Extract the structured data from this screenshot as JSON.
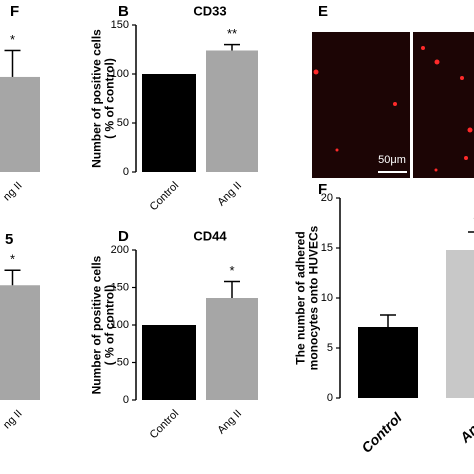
{
  "chart_data": [
    {
      "type": "bar",
      "title": "F",
      "categories": [
        "ng II"
      ],
      "values": [
        97
      ],
      "errors": [
        27
      ],
      "annotations": [
        "*"
      ],
      "colors": [
        "#a6a6a6"
      ],
      "ylim": [
        0,
        150
      ]
    },
    {
      "type": "bar",
      "label": "B",
      "title": "CD33",
      "ylabel": [
        "Number of positive cells",
        "( % of control)"
      ],
      "categories": [
        "Control",
        "Ang II"
      ],
      "values": [
        100,
        124
      ],
      "errors": [
        0,
        6
      ],
      "annotations": [
        "",
        "**"
      ],
      "colors": [
        "#000000",
        "#a6a6a6"
      ],
      "ylim": [
        0,
        150
      ],
      "yticks": [
        0,
        50,
        100,
        150
      ]
    },
    {
      "type": "bar",
      "title": "5",
      "categories": [
        "ng II"
      ],
      "values": [
        153
      ],
      "errors": [
        20
      ],
      "annotations": [
        "*"
      ],
      "colors": [
        "#a6a6a6"
      ],
      "ylim": [
        0,
        200
      ]
    },
    {
      "type": "bar",
      "label": "D",
      "title": "CD44",
      "ylabel": [
        "Number of positive cells",
        "( % of control)"
      ],
      "categories": [
        "Control",
        "Ang II"
      ],
      "values": [
        100,
        136
      ],
      "errors": [
        0,
        22
      ],
      "annotations": [
        "",
        "*"
      ],
      "colors": [
        "#000000",
        "#a6a6a6"
      ],
      "ylim": [
        0,
        200
      ],
      "yticks": [
        0,
        50,
        100,
        150,
        200
      ]
    },
    {
      "type": "bar",
      "label": "F",
      "ylabel": [
        "The number of adhered",
        "monocytes onto HUVECs"
      ],
      "categories": [
        "Control",
        "Ang I"
      ],
      "values": [
        7.1,
        14.8
      ],
      "errors": [
        1.2,
        1.8
      ],
      "annotations": [
        "",
        "*"
      ],
      "colors": [
        "#000000",
        "#c8c8c8"
      ],
      "ylim": [
        0,
        20
      ],
      "yticks": [
        0,
        5,
        10,
        15,
        20
      ]
    }
  ],
  "panel_e": {
    "label": "E",
    "scale_bar": "50μm"
  }
}
